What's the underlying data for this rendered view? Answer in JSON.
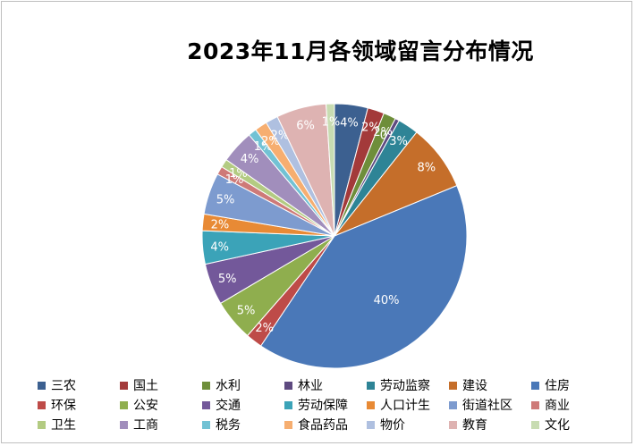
{
  "chart_data": {
    "type": "pie",
    "title": "2023年11月各领域留言分布情况",
    "legend_position": "bottom",
    "slices": [
      {
        "name": "三农",
        "value": 4,
        "label": "4%",
        "color": "#3C6090"
      },
      {
        "name": "国土",
        "value": 2,
        "label": "2%",
        "color": "#A33A3A"
      },
      {
        "name": "水利",
        "value": 1.5,
        "label": "2%",
        "color": "#6E8E3A"
      },
      {
        "name": "林业",
        "value": 0.5,
        "label": "0%",
        "color": "#5E4A80"
      },
      {
        "name": "劳动监察",
        "value": 2.5,
        "label": "3%",
        "color": "#2E8496"
      },
      {
        "name": "建设",
        "value": 8,
        "label": "8%",
        "color": "#C56E2A"
      },
      {
        "name": "住房",
        "value": 40,
        "label": "40%",
        "color": "#4A78B8"
      },
      {
        "name": "环保",
        "value": 2,
        "label": "2%",
        "color": "#BE4B48"
      },
      {
        "name": "公安",
        "value": 5,
        "label": "5%",
        "color": "#8FAE4E"
      },
      {
        "name": "交通",
        "value": 5,
        "label": "5%",
        "color": "#73589A"
      },
      {
        "name": "劳动保障",
        "value": 4,
        "label": "4%",
        "color": "#3BA3B8"
      },
      {
        "name": "人口计生",
        "value": 2,
        "label": "2%",
        "color": "#E88A35"
      },
      {
        "name": "街道社区",
        "value": 5,
        "label": "5%",
        "color": "#7D9BCF"
      },
      {
        "name": "商业",
        "value": 1,
        "label": "1%",
        "color": "#CE7A78"
      },
      {
        "name": "卫生",
        "value": 1,
        "label": "1%",
        "color": "#B3CB82"
      },
      {
        "name": "工商",
        "value": 4,
        "label": "4%",
        "color": "#A18EBC"
      },
      {
        "name": "税务",
        "value": 1,
        "label": "1%",
        "color": "#72C2D4"
      },
      {
        "name": "食品药品",
        "value": 1.5,
        "label": "2%",
        "color": "#F6AE70"
      },
      {
        "name": "物价",
        "value": 1.5,
        "label": "2%",
        "color": "#AFC0E0"
      },
      {
        "name": "教育",
        "value": 6,
        "label": "6%",
        "color": "#DEB3B2"
      },
      {
        "name": "文化",
        "value": 1,
        "label": "1%",
        "color": "#C8DCB2"
      }
    ]
  }
}
